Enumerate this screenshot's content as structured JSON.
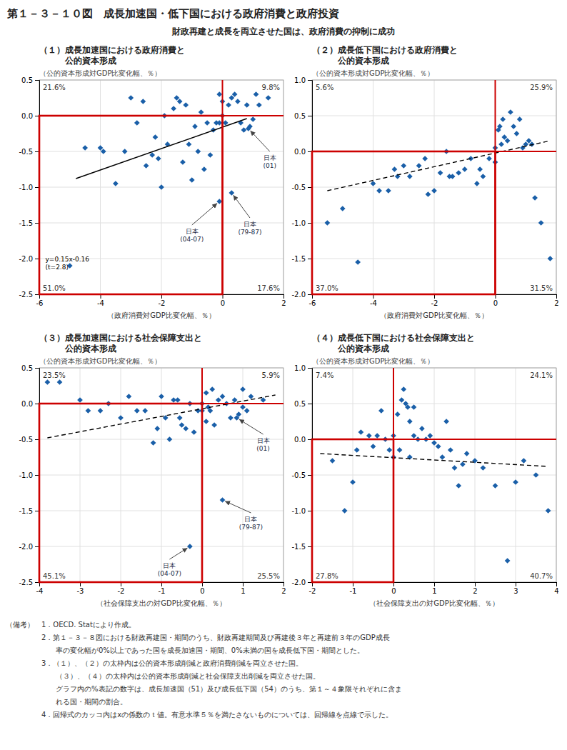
{
  "title": "第１－３－１０図　成長加速国・低下国における政府消費と政府投資",
  "subtitle": "財政再建と成長を両立させた国は、政府消費の抑制に成功",
  "chart_data": [
    {
      "type": "scatter",
      "title": "（１）成長加速国における政府消費と\n　　　公的資本形成",
      "y_label": "（公的資本形成対GDP比変化幅、％）",
      "x_label": "（政府消費対GDP比変化幅、％）",
      "xlim": [
        -6,
        2
      ],
      "ylim": [
        -2.5,
        0.5
      ],
      "xticks": [
        -6,
        -4,
        -2,
        0,
        2
      ],
      "yticks": [
        -2.5,
        {
          "value": -2.0,
          "label": "-2.0"
        },
        -1.5,
        {
          "value": -1.0,
          "label": "-1.0"
        },
        -0.5,
        {
          "value": 0.0,
          "label": "0.0"
        },
        0.5
      ],
      "grid": true,
      "series": [
        {
          "type": "scatter",
          "marker": "diamond",
          "color": "#1a5fa8",
          "x": [
            -5.0,
            -4.5,
            -4.0,
            -3.9,
            -3.5,
            -3.2,
            -3.0,
            -2.8,
            -2.6,
            -2.5,
            -2.3,
            -2.2,
            -2.1,
            -2.0,
            -1.9,
            -1.8,
            -1.6,
            -1.5,
            -1.4,
            -1.3,
            -1.2,
            -1.1,
            -1.0,
            -0.9,
            -0.8,
            -0.7,
            -0.6,
            -0.5,
            -0.4,
            -0.3,
            -0.2,
            -0.1,
            -0.1,
            0.0,
            0.0,
            0.1,
            0.2,
            0.3,
            0.4,
            0.5,
            0.6,
            0.7,
            0.8,
            0.9,
            1.0,
            1.1,
            1.2,
            1.5
          ],
          "values": [
            -2.1,
            -0.45,
            -0.45,
            -0.5,
            -0.95,
            -0.5,
            0.25,
            -0.1,
            0.2,
            -0.7,
            -0.55,
            -0.3,
            -0.6,
            -1.0,
            0.0,
            -0.4,
            0.1,
            0.25,
            0.2,
            -0.65,
            0.15,
            -0.4,
            -0.9,
            -0.15,
            -0.5,
            0.05,
            -0.75,
            -0.1,
            -0.55,
            -0.2,
            -0.1,
            0.3,
            -0.1,
            0.2,
            0.0,
            -0.1,
            0.15,
            0.25,
            0.3,
            0.2,
            -0.1,
            -0.2,
            0.15,
            -0.15,
            -0.05,
            0.3,
            0.15,
            0.25
          ]
        },
        {
          "type": "line",
          "line_style": "solid",
          "color": "black",
          "x": [
            -4.8,
            0.8
          ],
          "values": [
            -0.88,
            -0.04
          ]
        }
      ],
      "equation": {
        "text": "y=0.15x-0.16\n(t=2.8)",
        "x": -5.8,
        "y": -1.95
      },
      "annotations": [
        {
          "text": "日本\n(04-07)",
          "x": -0.1,
          "y": -1.2,
          "label_x": -1.0,
          "label_y": -1.55
        },
        {
          "text": "日本\n(79-87)",
          "x": 0.3,
          "y": -1.08,
          "label_x": 0.9,
          "label_y": -1.45
        },
        {
          "text": "日本\n(01)",
          "x": 0.85,
          "y": -0.18,
          "label_x": 1.55,
          "label_y": -0.52
        }
      ],
      "reference_lines": {
        "x": 0,
        "y": 0,
        "color": "#cc0000"
      },
      "highlight_box": {
        "x": [
          -6,
          0
        ],
        "y": [
          -2.5,
          0
        ],
        "color": "#cc0000"
      },
      "quadrant_labels": [
        "21.6%",
        "9.8%",
        "51.0%",
        "17.6%"
      ]
    },
    {
      "type": "scatter",
      "title": "（２）成長低下国における政府消費と\n　　　公的資本形成",
      "y_label": "（公的資本形成対GDP比変化幅、％）",
      "x_label": "（政府消費対GDP比変化幅、％）",
      "xlim": [
        -6,
        2
      ],
      "ylim": [
        -2.0,
        1.0
      ],
      "xticks": [
        -6,
        -4,
        -2,
        0,
        2
      ],
      "yticks": [
        {
          "value": -2.0,
          "label": "-2.0"
        },
        -1.5,
        {
          "value": -1.0,
          "label": "-1.0"
        },
        -0.5,
        {
          "value": 0.0,
          "label": "0.0"
        },
        0.5,
        {
          "value": 1.0,
          "label": "1.0"
        }
      ],
      "grid": true,
      "series": [
        {
          "type": "scatter",
          "marker": "diamond",
          "color": "#1a5fa8",
          "x": [
            -5.5,
            -5.0,
            -4.5,
            -4.0,
            -3.8,
            -3.5,
            -3.3,
            -3.2,
            -3.0,
            -2.8,
            -2.5,
            -2.3,
            -2.2,
            -2.0,
            -1.8,
            -1.6,
            -1.5,
            -1.4,
            -1.2,
            -1.0,
            -0.8,
            -0.6,
            -0.5,
            -0.4,
            -0.2,
            0.0,
            0.0,
            0.1,
            0.15,
            0.2,
            0.25,
            0.3,
            0.4,
            0.5,
            0.6,
            0.7,
            0.8,
            0.9,
            1.0,
            1.1,
            1.2,
            1.3,
            1.5,
            1.8
          ],
          "values": [
            -1.0,
            -0.8,
            -1.55,
            -0.45,
            -0.55,
            -0.55,
            -0.25,
            -0.35,
            -0.2,
            -0.35,
            -0.2,
            -0.1,
            -0.6,
            -0.55,
            -0.3,
            0.0,
            -0.35,
            -0.35,
            -0.3,
            -0.25,
            -0.1,
            -0.45,
            -0.25,
            -0.35,
            -0.1,
            0.05,
            -0.15,
            0.3,
            0.35,
            0.1,
            0.45,
            0.2,
            0.15,
            0.55,
            0.35,
            0.25,
            0.45,
            0.05,
            0.1,
            0.15,
            0.1,
            -0.65,
            -1.0,
            -1.5
          ]
        },
        {
          "type": "line",
          "line_style": "dashed",
          "color": "black",
          "x": [
            -5.5,
            1.8
          ],
          "values": [
            -0.55,
            0.15
          ]
        }
      ],
      "annotations": [],
      "reference_lines": {
        "x": 0,
        "y": 0,
        "color": "#cc0000"
      },
      "highlight_box": {
        "x": [
          -6,
          0
        ],
        "y": [
          -2.0,
          0
        ],
        "color": "#cc0000"
      },
      "quadrant_labels": [
        "5.6%",
        "25.9%",
        "37.0%",
        "31.5%"
      ]
    },
    {
      "type": "scatter",
      "title": "（３）成長加速国における社会保障支出と\n　　　公的資本形成",
      "y_label": "（公的資本形成対GDP比変化幅、％）",
      "x_label": "（社会保障支出の対GDP比変化幅、％）",
      "xlim": [
        -4,
        2
      ],
      "ylim": [
        -2.5,
        0.5
      ],
      "xticks": [
        -4,
        -3,
        -2,
        -1,
        0,
        1,
        2
      ],
      "yticks": [
        -2.5,
        {
          "value": -2.0,
          "label": "-2.0"
        },
        -1.5,
        {
          "value": -1.0,
          "label": "-1.0"
        },
        -0.5,
        {
          "value": 0.0,
          "label": "0.0"
        },
        0.5
      ],
      "grid": true,
      "series": [
        {
          "type": "scatter",
          "marker": "diamond",
          "color": "#1a5fa8",
          "x": [
            -3.8,
            -3.5,
            -3.0,
            -2.8,
            -2.5,
            -2.3,
            -2.0,
            -1.8,
            -1.6,
            -1.4,
            -1.2,
            -1.1,
            -1.0,
            -0.9,
            -0.8,
            -0.7,
            -0.6,
            -0.55,
            -0.5,
            -0.4,
            -0.3,
            -0.2,
            -0.1,
            0.0,
            0.0,
            0.1,
            0.1,
            0.15,
            0.2,
            0.25,
            0.3,
            0.4,
            0.5,
            0.6,
            0.7,
            0.8,
            0.9,
            1.0,
            1.0,
            1.1,
            1.2,
            1.5
          ],
          "values": [
            0.3,
            0.3,
            0.05,
            -0.1,
            -0.1,
            0.0,
            -0.2,
            0.1,
            -0.1,
            -0.1,
            -0.55,
            -0.35,
            0.1,
            -0.2,
            -0.5,
            0.05,
            0.05,
            -0.2,
            -0.3,
            -0.35,
            0.0,
            -0.4,
            -0.1,
            0.0,
            -0.1,
            -0.25,
            0.15,
            -0.05,
            -0.1,
            0.2,
            -0.3,
            0.05,
            0.1,
            0.0,
            -0.2,
            0.05,
            -0.15,
            -0.05,
            0.2,
            -0.1,
            0.1,
            0.05
          ]
        },
        {
          "type": "line",
          "line_style": "dashed",
          "color": "black",
          "x": [
            -3.8,
            1.8
          ],
          "values": [
            -0.48,
            0.12
          ]
        }
      ],
      "annotations": [
        {
          "text": "日本\n(79-87)",
          "x": 0.5,
          "y": -1.35,
          "label_x": 1.2,
          "label_y": -1.55
        },
        {
          "text": "日本\n(04-07)",
          "x": -0.3,
          "y": -2.0,
          "label_x": -0.8,
          "label_y": -2.2
        },
        {
          "text": "日本\n(01)",
          "x": 0.85,
          "y": -0.2,
          "label_x": 1.5,
          "label_y": -0.45
        }
      ],
      "reference_lines": {
        "x": 0,
        "y": 0,
        "color": "#cc0000"
      },
      "highlight_box": {
        "x": [
          -4,
          0
        ],
        "y": [
          -2.5,
          0
        ],
        "color": "#cc0000"
      },
      "quadrant_labels": [
        "23.5%",
        "5.9%",
        "45.1%",
        "25.5%"
      ]
    },
    {
      "type": "scatter",
      "title": "（４）成長低下国における社会保障支出と\n　　　公的資本形成",
      "y_label": "（公的資本形成対GDP比変化幅、％）",
      "x_label": "（社会保障支出の対GDP比変化幅、％）",
      "xlim": [
        -2,
        4
      ],
      "ylim": [
        -2.0,
        1.0
      ],
      "xticks": [
        -2,
        -1,
        0,
        1,
        2,
        3,
        4
      ],
      "yticks": [
        {
          "value": -2.0,
          "label": "-2.0"
        },
        -1.5,
        {
          "value": -1.0,
          "label": "-1.0"
        },
        -0.5,
        {
          "value": 0.0,
          "label": "0.0"
        },
        0.5,
        {
          "value": 1.0,
          "label": "1.0"
        }
      ],
      "grid": true,
      "series": [
        {
          "type": "scatter",
          "marker": "diamond",
          "color": "#1a5fa8",
          "x": [
            -1.5,
            -1.2,
            -1.0,
            -0.9,
            -0.8,
            -0.6,
            -0.5,
            -0.4,
            -0.3,
            -0.2,
            -0.1,
            0.0,
            0.0,
            0.1,
            0.15,
            0.2,
            0.25,
            0.3,
            0.35,
            0.4,
            0.4,
            0.5,
            0.5,
            0.6,
            0.7,
            0.8,
            0.9,
            1.0,
            1.1,
            1.2,
            1.3,
            1.4,
            1.5,
            1.6,
            1.7,
            1.8,
            2.0,
            2.2,
            2.5,
            2.8,
            3.0,
            3.2,
            3.5,
            3.8
          ],
          "values": [
            -0.3,
            -1.0,
            -0.6,
            -0.15,
            0.1,
            0.05,
            -0.1,
            0.05,
            0.4,
            0.0,
            -0.15,
            0.05,
            -0.25,
            0.35,
            -0.15,
            0.55,
            0.7,
            0.5,
            0.45,
            0.25,
            -0.25,
            0.45,
            0.05,
            0.0,
            0.15,
            0.0,
            0.05,
            -0.05,
            -0.1,
            -0.25,
            0.25,
            -0.15,
            -0.4,
            -0.65,
            -0.35,
            -0.2,
            -0.3,
            -0.4,
            -0.65,
            -1.7,
            -0.6,
            -0.3,
            -0.5,
            -1.0
          ]
        },
        {
          "type": "line",
          "line_style": "dashed",
          "color": "black",
          "x": [
            -1.8,
            3.8
          ],
          "values": [
            -0.2,
            -0.38
          ]
        }
      ],
      "annotations": [],
      "reference_lines": {
        "x": 0,
        "y": 0,
        "color": "#cc0000"
      },
      "highlight_box": {
        "x": [
          -2,
          0
        ],
        "y": [
          -2.0,
          0
        ],
        "color": "#cc0000"
      },
      "quadrant_labels": [
        "7.4%",
        "24.1%",
        "27.8%",
        "40.7%"
      ]
    }
  ],
  "footnotes": [
    "（備考）　1．OECD. Statにより作成。",
    "　　　　　2．第１－３－８図における財政再建国・期間のうち、財政再建期間及び再建後３年と再建前３年のGDP成長",
    "　　　　　　　率の変化幅が0%以上であった国を成長加速国・期間、0%未満の国を成長低下国・期間とした。",
    "　　　　　3．（１）、（２）の太枠内は公的資本形成削減と政府消費削減を両立させた国。",
    "　　　　　　　（３）、（４）の太枠内は公的資本形成削減と社会保障支出削減を両立させた国。",
    "　　　　　　　グラフ内の%表記の数字は、成長加速国（51）及び成長低下国（54）のうち、第１～４象限それぞれに含ま",
    "　　　　　　　れる国・期間の割合。",
    "　　　　　4．回帰式のカッコ内はxの係数のｔ値。有意水準５％を満たさないものについては、回帰線を点線で示した。"
  ]
}
